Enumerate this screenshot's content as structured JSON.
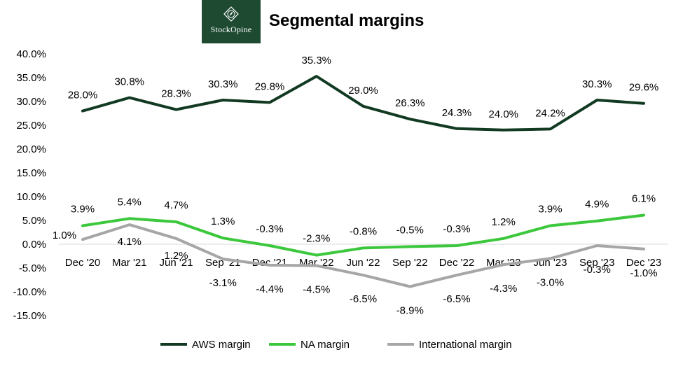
{
  "brand": {
    "name": "StockOpine",
    "logo_icon": "diamond-leaf-icon",
    "bg_color": "#1f4a32"
  },
  "chart_data": {
    "type": "line",
    "title": "Segmental margins",
    "categories": [
      "Dec '20",
      "Mar '21",
      "Jun '21",
      "Sep '21",
      "Dec '21",
      "Mar '22",
      "Jun '22",
      "Sep '22",
      "Dec '22",
      "Mar '23",
      "Jun '23",
      "Sep '23",
      "Dec '23"
    ],
    "ylim": [
      -15,
      40
    ],
    "yticks": [
      40,
      35,
      30,
      25,
      20,
      15,
      10,
      5,
      0,
      -5,
      -10,
      -15
    ],
    "ytick_labels": [
      "40.0%",
      "35.0%",
      "30.0%",
      "25.0%",
      "20.0%",
      "15.0%",
      "10.0%",
      "5.0%",
      "0.0%",
      "-5.0%",
      "-10.0%",
      "-15.0%"
    ],
    "grid": false,
    "legend_position": "bottom",
    "series": [
      {
        "name": "AWS margin",
        "color": "#123a22",
        "values": [
          28.0,
          30.8,
          28.3,
          30.3,
          29.8,
          35.3,
          29.0,
          26.3,
          24.3,
          24.0,
          24.2,
          30.3,
          29.6
        ],
        "labels": [
          "28.0%",
          "30.8%",
          "28.3%",
          "30.3%",
          "29.8%",
          "35.3%",
          "29.0%",
          "26.3%",
          "24.3%",
          "24.0%",
          "24.2%",
          "30.3%",
          "29.6%"
        ]
      },
      {
        "name": "NA margin",
        "color": "#3cc83c",
        "values": [
          3.9,
          5.4,
          4.7,
          1.3,
          -0.3,
          -2.3,
          -0.8,
          -0.5,
          -0.3,
          1.2,
          3.9,
          4.9,
          6.1
        ],
        "labels": [
          "3.9%",
          "5.4%",
          "4.7%",
          "1.3%",
          "-0.3%",
          "-2.3%",
          "-0.8%",
          "-0.5%",
          "-0.3%",
          "1.2%",
          "3.9%",
          "4.9%",
          "6.1%"
        ]
      },
      {
        "name": "International margin",
        "color": "#a6a6a6",
        "values": [
          1.0,
          4.1,
          1.2,
          -3.1,
          -4.4,
          -4.5,
          -6.5,
          -8.9,
          -6.5,
          -4.3,
          -3.0,
          -0.3,
          -1.0
        ],
        "labels": [
          "1.0%",
          "4.1%",
          "1.2%",
          "-3.1%",
          "-4.4%",
          "-4.5%",
          "-6.5%",
          "-8.9%",
          "-6.5%",
          "-4.3%",
          "-3.0%",
          "-0.3%",
          "-1.0%"
        ]
      }
    ]
  }
}
